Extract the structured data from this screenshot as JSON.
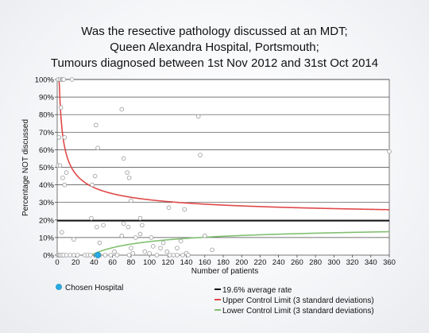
{
  "chart_data": {
    "type": "scatter",
    "title_lines": [
      "Was the resective pathology discussed at an MDT;",
      "Queen Alexandra Hospital, Portsmouth;",
      "Tumours diagnosed between 1st Nov 2012 and 31st Oct 2014"
    ],
    "xlabel": "Number of patients",
    "ylabel": "Percentage NOT discussed",
    "xlim": [
      0,
      360
    ],
    "ylim": [
      0,
      100
    ],
    "x_ticks": [
      0,
      20,
      40,
      60,
      80,
      100,
      120,
      140,
      160,
      180,
      200,
      220,
      240,
      260,
      280,
      300,
      320,
      340,
      360
    ],
    "y_ticks": [
      0,
      10,
      20,
      30,
      40,
      50,
      60,
      70,
      80,
      90,
      100
    ],
    "y_tick_suffix": "%",
    "grid": true,
    "average_rate": 19.6,
    "legend_position": "bottom",
    "colors": {
      "points": "#999999",
      "chosen": "#29abe2",
      "average": "#111111",
      "upper": "#e04848",
      "lower": "#80c070",
      "grid": "#444444"
    },
    "series": [
      {
        "name": "Chosen Hospital",
        "points": [
          [
            44,
            0
          ]
        ]
      },
      {
        "name": "19.6% average rate",
        "kind": "line"
      },
      {
        "name": "Upper Control Limit (3 standard deviations)",
        "kind": "line"
      },
      {
        "name": "Lower Control Limit (3 standard deviations)",
        "kind": "line"
      },
      {
        "kind": "scatter",
        "points": [
          [
            1,
            100
          ],
          [
            3,
            100
          ],
          [
            5,
            100
          ],
          [
            6,
            100
          ],
          [
            7,
            100
          ],
          [
            16,
            100
          ],
          [
            4,
            84
          ],
          [
            8,
            67
          ],
          [
            2,
            67
          ],
          [
            1,
            51
          ],
          [
            3,
            51
          ],
          [
            10,
            47
          ],
          [
            6,
            44
          ],
          [
            8,
            40
          ],
          [
            5,
            13
          ],
          [
            18,
            9
          ],
          [
            1,
            0
          ],
          [
            2,
            0
          ],
          [
            3,
            0
          ],
          [
            5,
            0
          ],
          [
            7,
            0
          ],
          [
            10,
            0
          ],
          [
            14,
            0
          ],
          [
            18,
            0
          ],
          [
            22,
            0
          ],
          [
            30,
            0
          ],
          [
            33,
            0
          ],
          [
            36,
            0
          ],
          [
            46,
            0
          ],
          [
            38,
            40
          ],
          [
            41,
            45
          ],
          [
            42,
            74
          ],
          [
            44,
            61
          ],
          [
            37,
            21
          ],
          [
            43,
            16
          ],
          [
            46,
            7
          ],
          [
            50,
            17
          ],
          [
            52,
            0
          ],
          [
            58,
            0
          ],
          [
            62,
            2
          ],
          [
            65,
            0
          ],
          [
            70,
            83
          ],
          [
            72,
            55
          ],
          [
            72,
            18
          ],
          [
            70,
            11
          ],
          [
            76,
            47
          ],
          [
            77,
            16
          ],
          [
            78,
            44
          ],
          [
            78,
            0
          ],
          [
            80,
            31
          ],
          [
            80,
            4
          ],
          [
            82,
            1
          ],
          [
            85,
            10
          ],
          [
            90,
            12
          ],
          [
            90,
            21
          ],
          [
            92,
            17
          ],
          [
            95,
            2
          ],
          [
            100,
            1
          ],
          [
            102,
            10
          ],
          [
            104,
            5
          ],
          [
            108,
            0
          ],
          [
            112,
            4
          ],
          [
            115,
            7
          ],
          [
            119,
            2
          ],
          [
            121,
            27
          ],
          [
            122,
            0
          ],
          [
            126,
            0
          ],
          [
            130,
            0
          ],
          [
            130,
            4
          ],
          [
            134,
            8
          ],
          [
            136,
            0
          ],
          [
            138,
            26
          ],
          [
            140,
            1
          ],
          [
            142,
            0
          ],
          [
            153,
            79
          ],
          [
            155,
            57
          ],
          [
            160,
            11
          ],
          [
            168,
            3
          ],
          [
            360,
            59
          ]
        ]
      }
    ]
  }
}
